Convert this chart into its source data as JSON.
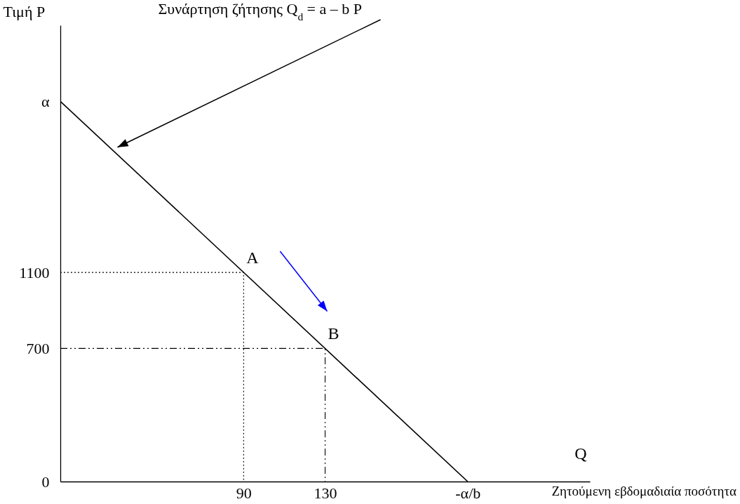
{
  "chart_data": {
    "type": "line",
    "ylabel": "Τιμή P",
    "xlabel": "Q",
    "xlim": [
      0,
      260
    ],
    "ylim": [
      0,
      2400
    ],
    "xticks": [
      90,
      130,
      {
        "value": 200,
        "label": "-α/b"
      }
    ],
    "yticks": [
      0,
      700,
      1100,
      {
        "value": 2000,
        "label": "α"
      }
    ],
    "grid": false,
    "marker": "none",
    "series": [
      {
        "color": "#000000",
        "x": [
          0,
          200
        ],
        "values": [
          2000,
          0
        ],
        "line_style": "solid"
      },
      {
        "color": "#000000",
        "x": [
          0,
          90,
          90
        ],
        "values": [
          1100,
          1100,
          0
        ],
        "line_style": "dotted"
      },
      {
        "color": "#000000",
        "x": [
          0,
          130,
          130
        ],
        "values": [
          700,
          700,
          0
        ],
        "line_style": "dashed"
      }
    ],
    "annotations": [
      {
        "text": "A",
        "x": 90,
        "y": 1100
      },
      {
        "text": "B",
        "x": 130,
        "y": 700
      },
      "Συνάρτηση ζήτησης Q$_{d}$ = a – b P",
      "Ζητούμενη εβδομαδιαία ποσότητα"
    ]
  }
}
